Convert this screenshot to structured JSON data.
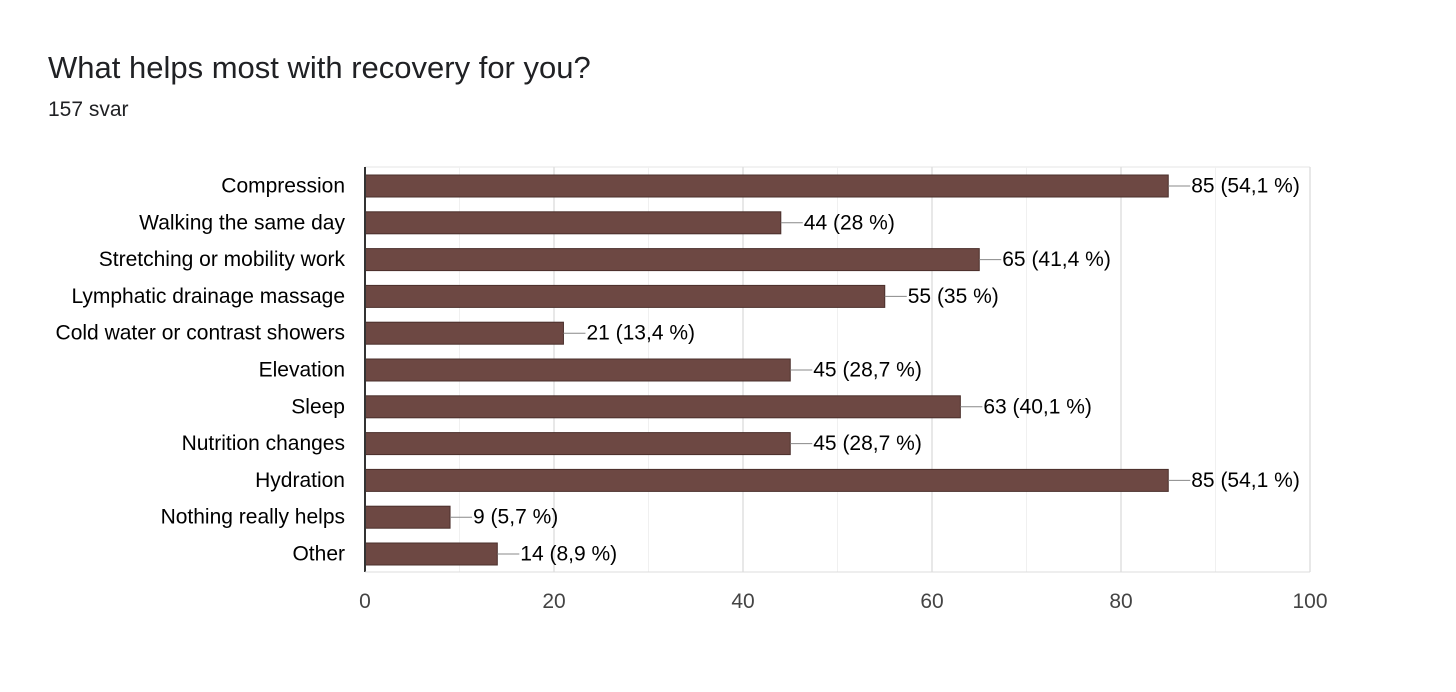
{
  "question": {
    "title": "What helps most with recovery for you?",
    "response_count": "157 svar"
  },
  "chart_data": {
    "type": "bar",
    "orientation": "horizontal",
    "title": "What helps most with recovery for you?",
    "subtitle": "157 svar",
    "xlabel": "",
    "ylabel": "",
    "xlim": [
      0,
      100
    ],
    "x_ticks": [
      "0",
      "20",
      "40",
      "60",
      "80",
      "100"
    ],
    "grid": true,
    "legend": "none",
    "bar_color": "#6d4843",
    "categories": [
      "Compression",
      "Walking the same day",
      "Stretching or mobility work",
      "Lymphatic drainage massage",
      "Cold water or contrast showers",
      "Elevation",
      "Sleep",
      "Nutrition changes",
      "Hydration",
      "Nothing really helps",
      "Other"
    ],
    "values": [
      85,
      44,
      65,
      55,
      21,
      45,
      63,
      45,
      85,
      9,
      14
    ],
    "data_labels": [
      "85 (54,1 %)",
      "44 (28 %)",
      "65 (41,4 %)",
      "55 (35 %)",
      "21 (13,4 %)",
      "45 (28,7 %)",
      "63 (40,1 %)",
      "45 (28,7 %)",
      "85 (54,1 %)",
      "9 (5,7 %)",
      "14 (8,9 %)"
    ]
  }
}
